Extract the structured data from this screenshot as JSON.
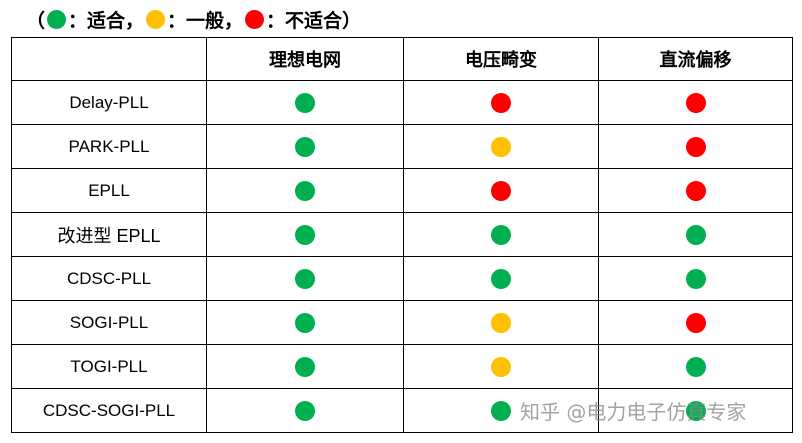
{
  "legend": {
    "open": "（",
    "close": "）",
    "items": [
      {
        "color": "#00B050",
        "label": "：适合，",
        "meaning": "suitable"
      },
      {
        "color": "#FFC000",
        "label": "：一般，",
        "meaning": "average"
      },
      {
        "color": "#FF0000",
        "label": "：不适合",
        "meaning": "unsuitable"
      }
    ]
  },
  "colors": {
    "suitable": "#00B050",
    "average": "#FFC000",
    "unsuitable": "#FF0000"
  },
  "table": {
    "headers": [
      "",
      "理想电网",
      "电压畸变",
      "直流偏移"
    ],
    "rows": [
      {
        "name": "Delay-PLL",
        "ratings": [
          "suitable",
          "unsuitable",
          "unsuitable"
        ]
      },
      {
        "name": "PARK-PLL",
        "ratings": [
          "suitable",
          "average",
          "unsuitable"
        ]
      },
      {
        "name": "EPLL",
        "ratings": [
          "suitable",
          "unsuitable",
          "unsuitable"
        ]
      },
      {
        "name": "改进型 EPLL",
        "ratings": [
          "suitable",
          "suitable",
          "suitable"
        ]
      },
      {
        "name": "CDSC-PLL",
        "ratings": [
          "suitable",
          "suitable",
          "suitable"
        ]
      },
      {
        "name": "SOGI-PLL",
        "ratings": [
          "suitable",
          "average",
          "unsuitable"
        ]
      },
      {
        "name": "TOGI-PLL",
        "ratings": [
          "suitable",
          "average",
          "suitable"
        ]
      },
      {
        "name": "CDSC-SOGI-PLL",
        "ratings": [
          "suitable",
          "suitable",
          "suitable"
        ]
      }
    ]
  },
  "watermark": "知乎 @电力电子仿真专家"
}
